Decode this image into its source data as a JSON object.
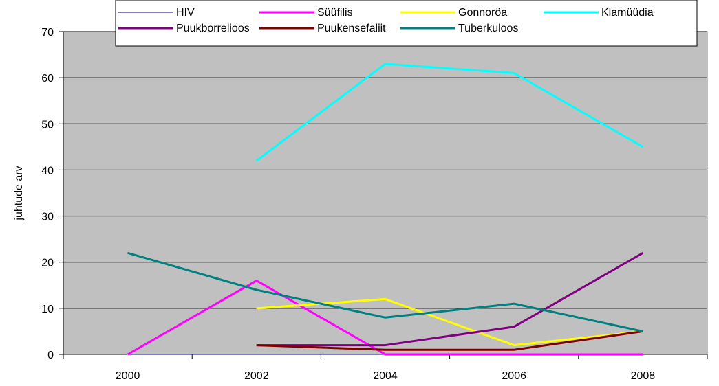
{
  "chart_data": {
    "type": "line",
    "ylabel": "juhtude arv",
    "xlabel": "",
    "x": [
      "2000",
      "2002",
      "2004",
      "2006",
      "2008"
    ],
    "ylim": [
      0,
      70
    ],
    "yticks": [
      0,
      10,
      20,
      30,
      40,
      50,
      60,
      70
    ],
    "grid": true,
    "legend_position": "top",
    "series": [
      {
        "name": "HIV",
        "color": "#000080",
        "width": 1,
        "values": [
          0,
          0,
          0,
          0,
          0
        ]
      },
      {
        "name": "Süüfilis",
        "color": "#ff00ff",
        "width": 3,
        "values": [
          0,
          16,
          0,
          0,
          0
        ]
      },
      {
        "name": "Gonnoröa",
        "color": "#ffff00",
        "width": 3,
        "values": [
          null,
          10,
          12,
          2,
          5
        ]
      },
      {
        "name": "Klamüüdia",
        "color": "#00ffff",
        "width": 3,
        "values": [
          null,
          42,
          63,
          61,
          45
        ]
      },
      {
        "name": "Puukborrelioos",
        "color": "#800080",
        "width": 3,
        "values": [
          null,
          2,
          2,
          6,
          22
        ]
      },
      {
        "name": "Puukensefaliit",
        "color": "#800000",
        "width": 3,
        "values": [
          null,
          2,
          1,
          1,
          5
        ]
      },
      {
        "name": "Tuberkuloos",
        "color": "#008080",
        "width": 3,
        "values": [
          22,
          14,
          8,
          11,
          5
        ]
      }
    ]
  }
}
